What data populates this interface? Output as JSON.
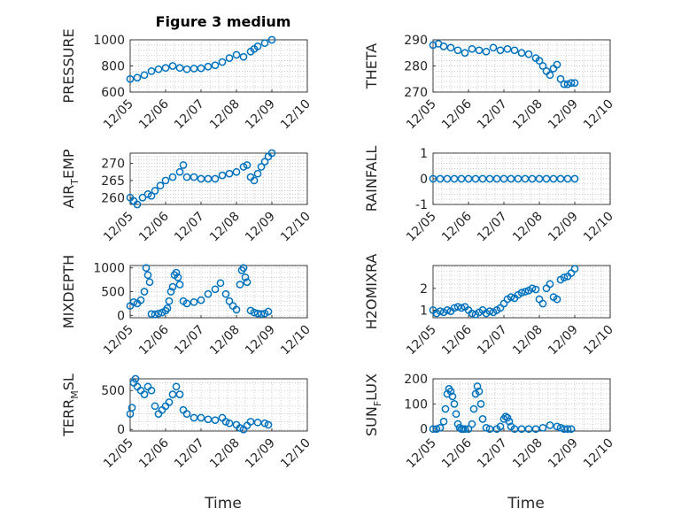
{
  "title": "Figure 3 medium",
  "x_axis_label": "Time",
  "x_ticks": [
    "12/05",
    "12/06",
    "12/07",
    "12/08",
    "12/09",
    "12/10"
  ],
  "marker_color": "#0072bd",
  "chart_data": [
    {
      "type": "scatter",
      "id": "pressure",
      "title": "Figure 3 medium",
      "ylabel": "PRESSURE",
      "ylabel_sub": "",
      "ylabel_after": "",
      "xlabel": "Time",
      "x_ticks": [
        "12/05",
        "12/06",
        "12/07",
        "12/08",
        "12/09",
        "12/10"
      ],
      "ylim": [
        600,
        1000
      ],
      "yticks": [
        600,
        800,
        1000
      ],
      "grid": true,
      "x": [
        0.0,
        0.2,
        0.4,
        0.6,
        0.8,
        1.0,
        1.2,
        1.4,
        1.6,
        1.8,
        2.0,
        2.2,
        2.4,
        2.6,
        2.8,
        3.0,
        3.2,
        3.4,
        3.5,
        3.6,
        3.8,
        4.0
      ],
      "y": [
        700,
        710,
        730,
        760,
        775,
        785,
        800,
        785,
        775,
        780,
        782,
        795,
        805,
        830,
        860,
        885,
        870,
        910,
        930,
        950,
        975,
        1000
      ]
    },
    {
      "type": "scatter",
      "id": "theta",
      "title": "",
      "ylabel": "THETA",
      "ylabel_sub": "",
      "ylabel_after": "",
      "xlabel": "Time",
      "x_ticks": [
        "12/05",
        "12/06",
        "12/07",
        "12/08",
        "12/09",
        "12/10"
      ],
      "ylim": [
        270,
        290
      ],
      "yticks": [
        270,
        280,
        290
      ],
      "grid": true,
      "x": [
        0.0,
        0.15,
        0.3,
        0.5,
        0.7,
        0.9,
        1.1,
        1.3,
        1.5,
        1.7,
        1.9,
        2.1,
        2.3,
        2.5,
        2.7,
        2.9,
        3.0,
        3.1,
        3.2,
        3.3,
        3.4,
        3.5,
        3.6,
        3.7,
        3.8,
        3.9,
        4.0
      ],
      "y": [
        288,
        288.5,
        287.5,
        287,
        286,
        285,
        286.5,
        286,
        285.5,
        287,
        286,
        286.5,
        286,
        285,
        284.5,
        283,
        282,
        280,
        278,
        276.5,
        279,
        280.5,
        275,
        273,
        273,
        273.5,
        273.5
      ]
    },
    {
      "type": "scatter",
      "id": "air_temp",
      "title": "",
      "ylabel": "AIR",
      "ylabel_sub": "T",
      "ylabel_after": "EMP",
      "xlabel": "Time",
      "x_ticks": [
        "12/05",
        "12/06",
        "12/07",
        "12/08",
        "12/09",
        "12/10"
      ],
      "ylim": [
        258,
        273
      ],
      "yticks": [
        260,
        265,
        270
      ],
      "grid": true,
      "x": [
        0.0,
        0.1,
        0.2,
        0.35,
        0.5,
        0.6,
        0.7,
        0.85,
        1.0,
        1.2,
        1.4,
        1.5,
        1.6,
        1.8,
        2.0,
        2.2,
        2.4,
        2.6,
        2.8,
        3.0,
        3.2,
        3.3,
        3.4,
        3.5,
        3.6,
        3.7,
        3.8,
        3.9,
        4.0
      ],
      "y": [
        260,
        259,
        258,
        260,
        261,
        260.5,
        262,
        263.5,
        265,
        266,
        267.5,
        269.5,
        266,
        266,
        265.5,
        265.5,
        265.5,
        266.5,
        267,
        267.5,
        269,
        269.5,
        266,
        265,
        267,
        269,
        270.5,
        272,
        273
      ]
    },
    {
      "type": "scatter",
      "id": "rainfall",
      "title": "",
      "ylabel": "RAINFALL",
      "ylabel_sub": "",
      "ylabel_after": "",
      "xlabel": "Time",
      "x_ticks": [
        "12/05",
        "12/06",
        "12/07",
        "12/08",
        "12/09",
        "12/10"
      ],
      "ylim": [
        -1,
        1
      ],
      "yticks": [
        -1,
        0,
        1
      ],
      "grid": true,
      "x": [
        0.0,
        0.2,
        0.4,
        0.6,
        0.8,
        1.0,
        1.2,
        1.4,
        1.6,
        1.8,
        2.0,
        2.2,
        2.4,
        2.6,
        2.8,
        3.0,
        3.2,
        3.4,
        3.6,
        3.8,
        4.0
      ],
      "y": [
        0,
        0,
        0,
        0,
        0,
        0,
        0,
        0,
        0,
        0,
        0,
        0,
        0,
        0,
        0,
        0,
        0,
        0,
        0,
        0,
        0
      ]
    },
    {
      "type": "scatter",
      "id": "mixdepth",
      "title": "",
      "ylabel": "MIXDEPTH",
      "ylabel_sub": "",
      "ylabel_after": "",
      "xlabel": "Time",
      "x_ticks": [
        "12/05",
        "12/06",
        "12/07",
        "12/08",
        "12/09",
        "12/10"
      ],
      "ylim": [
        -50,
        1050
      ],
      "yticks": [
        0,
        500,
        1000
      ],
      "grid": true,
      "x": [
        0.0,
        0.1,
        0.2,
        0.3,
        0.4,
        0.45,
        0.5,
        0.55,
        0.6,
        0.7,
        0.8,
        0.9,
        1.0,
        1.05,
        1.1,
        1.15,
        1.2,
        1.25,
        1.3,
        1.35,
        1.4,
        1.5,
        1.6,
        1.8,
        2.0,
        2.2,
        2.4,
        2.55,
        2.7,
        2.8,
        2.9,
        3.0,
        3.1,
        3.15,
        3.2,
        3.25,
        3.3,
        3.4,
        3.5,
        3.6,
        3.7,
        3.8,
        3.9
      ],
      "y": [
        200,
        280,
        250,
        320,
        500,
        1000,
        850,
        700,
        30,
        20,
        40,
        60,
        100,
        150,
        300,
        500,
        600,
        850,
        900,
        800,
        650,
        300,
        250,
        280,
        320,
        450,
        550,
        680,
        450,
        300,
        200,
        120,
        650,
        950,
        1000,
        800,
        700,
        100,
        60,
        40,
        30,
        40,
        80
      ]
    },
    {
      "type": "scatter",
      "id": "h2omixra",
      "title": "",
      "ylabel": "H2OMIXRA",
      "ylabel_sub": "",
      "ylabel_after": "",
      "xlabel": "Time",
      "x_ticks": [
        "12/05",
        "12/06",
        "12/07",
        "12/08",
        "12/09",
        "12/10"
      ],
      "ylim": [
        0.65,
        3.05
      ],
      "yticks": [
        1,
        2
      ],
      "grid": true,
      "x": [
        0.0,
        0.1,
        0.2,
        0.3,
        0.4,
        0.5,
        0.6,
        0.7,
        0.8,
        0.9,
        1.0,
        1.1,
        1.2,
        1.3,
        1.4,
        1.5,
        1.6,
        1.7,
        1.8,
        1.9,
        2.0,
        2.1,
        2.2,
        2.3,
        2.4,
        2.5,
        2.6,
        2.7,
        2.8,
        2.9,
        3.0,
        3.1,
        3.2,
        3.3,
        3.4,
        3.5,
        3.6,
        3.7,
        3.8,
        3.9,
        4.0
      ],
      "y": [
        1.0,
        0.85,
        0.95,
        0.9,
        1.0,
        0.95,
        1.1,
        1.15,
        1.1,
        1.15,
        1.0,
        0.85,
        0.8,
        0.9,
        1.0,
        0.85,
        0.95,
        0.9,
        1.0,
        1.1,
        1.3,
        1.5,
        1.6,
        1.55,
        1.7,
        1.8,
        1.85,
        1.9,
        2.0,
        1.95,
        1.5,
        1.3,
        2.0,
        2.2,
        1.6,
        1.5,
        2.4,
        2.5,
        2.55,
        2.7,
        2.9
      ]
    },
    {
      "type": "scatter",
      "id": "terr_msl",
      "title": "",
      "ylabel": "TERR",
      "ylabel_sub": "M",
      "ylabel_after": "SL",
      "xlabel": "Time",
      "x_ticks": [
        "12/05",
        "12/06",
        "12/07",
        "12/08",
        "12/09",
        "12/10"
      ],
      "ylim": [
        -20,
        650
      ],
      "yticks": [
        0,
        500
      ],
      "grid": true,
      "x": [
        0.0,
        0.05,
        0.1,
        0.15,
        0.2,
        0.3,
        0.4,
        0.5,
        0.6,
        0.7,
        0.8,
        0.9,
        1.0,
        1.1,
        1.2,
        1.3,
        1.4,
        1.5,
        1.6,
        1.8,
        2.0,
        2.2,
        2.4,
        2.6,
        2.7,
        2.8,
        3.0,
        3.1,
        3.2,
        3.3,
        3.4,
        3.6,
        3.8,
        3.9
      ],
      "y": [
        200,
        280,
        600,
        650,
        550,
        500,
        450,
        550,
        500,
        300,
        200,
        250,
        300,
        350,
        450,
        550,
        450,
        250,
        200,
        150,
        150,
        130,
        120,
        150,
        100,
        80,
        60,
        20,
        0,
        50,
        100,
        90,
        80,
        60
      ]
    },
    {
      "type": "scatter",
      "id": "sun_flux",
      "title": "",
      "ylabel": "SUN",
      "ylabel_sub": "F",
      "ylabel_after": "LUX",
      "xlabel": "Time",
      "x_ticks": [
        "12/05",
        "12/06",
        "12/07",
        "12/08",
        "12/09",
        "12/10"
      ],
      "ylim": [
        -8,
        200
      ],
      "yticks": [
        0,
        100,
        200
      ],
      "grid": true,
      "x": [
        0.0,
        0.1,
        0.2,
        0.3,
        0.35,
        0.4,
        0.45,
        0.5,
        0.55,
        0.6,
        0.65,
        0.7,
        0.75,
        0.8,
        0.85,
        0.9,
        1.0,
        1.1,
        1.15,
        1.2,
        1.25,
        1.3,
        1.35,
        1.4,
        1.5,
        1.6,
        1.8,
        1.9,
        2.0,
        2.05,
        2.1,
        2.15,
        2.2,
        2.3,
        2.5,
        2.7,
        2.9,
        3.1,
        3.3,
        3.5,
        3.6,
        3.7,
        3.8,
        3.9
      ],
      "y": [
        0,
        0,
        5,
        30,
        80,
        140,
        160,
        150,
        130,
        100,
        60,
        20,
        5,
        0,
        0,
        0,
        0,
        20,
        80,
        140,
        170,
        150,
        100,
        40,
        5,
        0,
        0,
        10,
        40,
        50,
        45,
        30,
        10,
        0,
        0,
        0,
        0,
        5,
        15,
        10,
        5,
        0,
        0,
        0
      ]
    }
  ]
}
